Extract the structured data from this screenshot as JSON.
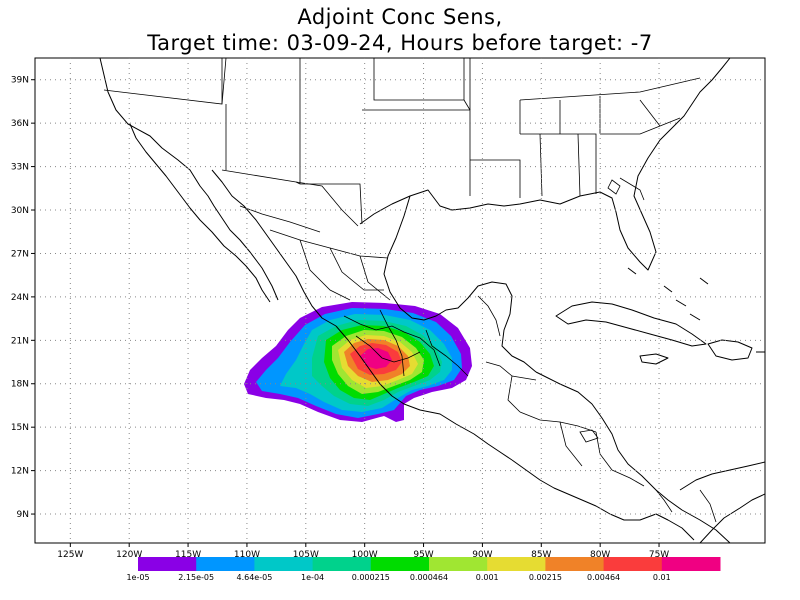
{
  "title": {
    "line1": "Adjoint Conc Sens,",
    "line2": "Target time: 03-09-24, Hours before target: -7"
  },
  "map": {
    "lon_range": [
      -128,
      -66
    ],
    "lat_range": [
      7,
      40.5
    ],
    "lat_labels": [
      "39N",
      "36N",
      "33N",
      "30N",
      "27N",
      "24N",
      "21N",
      "18N",
      "15N",
      "12N",
      "9N"
    ],
    "lon_labels": [
      "125W",
      "120W",
      "115W",
      "110W",
      "105W",
      "100W",
      "95W",
      "90W",
      "85W",
      "80W",
      "75W"
    ],
    "gridlines": "dotted"
  },
  "colorbar": {
    "colors": [
      "#8a00e6",
      "#0096ff",
      "#00c8c8",
      "#00d28c",
      "#00dc00",
      "#a0e632",
      "#e6dc32",
      "#f08228",
      "#fa3c3c",
      "#f00082"
    ],
    "labels": [
      "1e-05",
      "2.15e-05",
      "4.64e-05",
      "1e-04",
      "0.000215",
      "0.000464",
      "0.001",
      "0.00215",
      "0.00464",
      "0.01"
    ]
  }
}
